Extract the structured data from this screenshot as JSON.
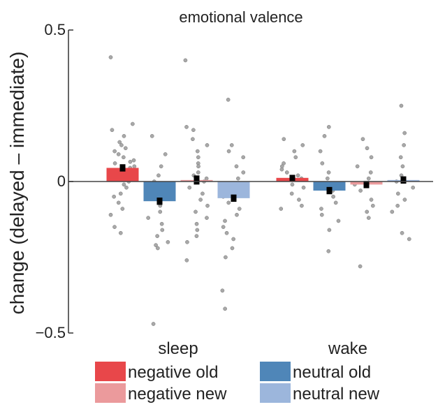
{
  "chart_data": {
    "type": "bar",
    "title": "emotional valence",
    "ylabel": "change (delayed – immediate)",
    "xlabel": "",
    "ylim": [
      -0.5,
      0.5
    ],
    "yticks": [
      "0.5",
      "0",
      "−0.5"
    ],
    "ytick_values": [
      0.5,
      0,
      -0.5
    ],
    "categories": [
      "sleep",
      "wake"
    ],
    "grid": false,
    "legend_position": "bottom",
    "series": [
      {
        "name": "negative old",
        "color": "#e8474a",
        "values": [
          0.045,
          0.012
        ],
        "sem": [
          0.012,
          0.01
        ],
        "points": [
          [
            0.41,
            0.19,
            0.17,
            0.15,
            0.13,
            0.12,
            0.11,
            0.1,
            0.09,
            0.08,
            0.07,
            0.065,
            0.06,
            0.05,
            0.045,
            0.04,
            0.035,
            0.03,
            0.02,
            0.01,
            0.0,
            -0.01,
            -0.02,
            -0.04,
            -0.05,
            -0.07,
            -0.09,
            -0.11,
            -0.15,
            -0.17
          ],
          [
            0.14,
            0.12,
            0.1,
            0.08,
            0.06,
            0.05,
            0.04,
            0.03,
            0.02,
            0.01,
            -0.01,
            -0.02,
            -0.04,
            -0.06,
            -0.08,
            -0.09
          ]
        ]
      },
      {
        "name": "neutral old",
        "color": "#4f86b8",
        "values": [
          -0.065,
          -0.03
        ],
        "sem": [
          0.012,
          0.012
        ],
        "points": [
          [
            0.15,
            0.09,
            0.05,
            0.02,
            0.0,
            -0.02,
            -0.04,
            -0.06,
            -0.08,
            -0.1,
            -0.12,
            -0.14,
            -0.16,
            -0.18,
            -0.2,
            -0.21,
            -0.22,
            -0.47
          ],
          [
            0.18,
            0.15,
            0.1,
            0.06,
            0.03,
            0.01,
            -0.01,
            -0.03,
            -0.05,
            -0.07,
            -0.09,
            -0.11,
            -0.13,
            -0.16,
            -0.23
          ]
        ]
      },
      {
        "name": "negative new",
        "color": "#eb9a9c",
        "values": [
          0.005,
          -0.01
        ],
        "sem": [
          0.015,
          0.012
        ],
        "points": [
          [
            0.4,
            0.18,
            0.17,
            0.14,
            0.12,
            0.1,
            0.08,
            0.06,
            0.05,
            0.03,
            0.02,
            0.01,
            0.0,
            -0.02,
            -0.04,
            -0.06,
            -0.08,
            -0.1,
            -0.12,
            -0.14,
            -0.16,
            -0.18,
            -0.2,
            -0.26
          ],
          [
            0.14,
            0.11,
            0.08,
            0.05,
            0.03,
            0.01,
            -0.01,
            -0.03,
            -0.06,
            -0.08,
            -0.1,
            -0.12,
            -0.28
          ]
        ]
      },
      {
        "name": "neutral new",
        "color": "#9cb6dc",
        "values": [
          -0.055,
          0.005
        ],
        "sem": [
          0.012,
          0.012
        ],
        "points": [
          [
            0.27,
            0.12,
            0.1,
            0.08,
            0.05,
            0.03,
            0.01,
            -0.01,
            -0.03,
            -0.05,
            -0.07,
            -0.09,
            -0.11,
            -0.13,
            -0.15,
            -0.17,
            -0.19,
            -0.22,
            -0.25,
            -0.36,
            -0.42
          ],
          [
            0.25,
            0.16,
            0.12,
            0.08,
            0.05,
            0.02,
            0.0,
            -0.02,
            -0.04,
            -0.06,
            -0.08,
            -0.1,
            -0.17,
            -0.19
          ]
        ]
      }
    ]
  }
}
